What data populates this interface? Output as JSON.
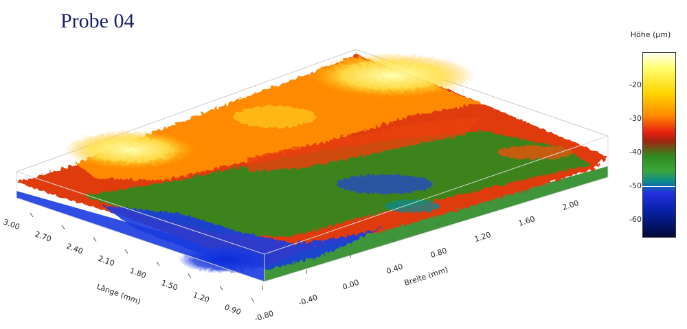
{
  "chart_data": {
    "type": "surface3d",
    "title": "Probe 04",
    "xlabel": "Länge (mm)",
    "ylabel": "Breite (mm)",
    "zlabel": "Höhe (µm)",
    "x_ticks": [
      "3.00",
      "2.70",
      "2.40",
      "2.10",
      "1.80",
      "1.50",
      "1.20",
      "0.90"
    ],
    "y_ticks": [
      "-0.80",
      "-0.40",
      "0.00",
      "0.40",
      "0.80",
      "1.20",
      "1.60",
      "2.00"
    ],
    "colorbar_ticks": [
      "-20",
      "-30",
      "-40",
      "-50",
      "-60"
    ],
    "colorbar_marker": "-50",
    "colors": {
      "title": "#1a1f6b",
      "high": "#ffff60",
      "mid_high": "#ff6a00",
      "mid": "#2f8a1e",
      "low": "#1a3be0",
      "lowest": "#000a3a"
    }
  }
}
